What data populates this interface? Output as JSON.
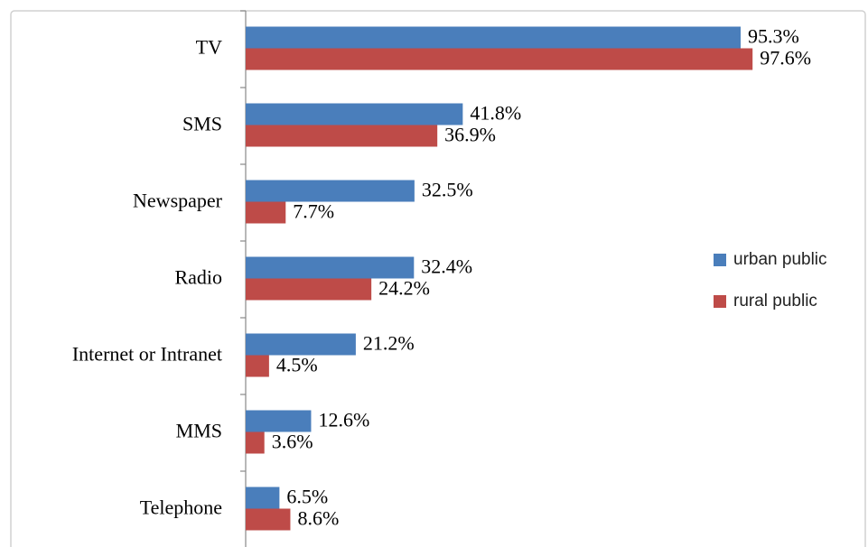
{
  "chart_data": {
    "type": "bar",
    "orientation": "horizontal",
    "categories": [
      "TV",
      "SMS",
      "Newspaper",
      "Radio",
      "Internet or Intranet",
      "MMS",
      "Telephone"
    ],
    "series": [
      {
        "name": "urban public",
        "color": "#4a7ebb",
        "values": [
          95.3,
          41.8,
          32.5,
          32.4,
          21.2,
          12.6,
          6.5
        ],
        "value_labels": [
          "95.3%",
          "41.8%",
          "32.5%",
          "32.4%",
          "21.2%",
          "12.6%",
          "6.5%"
        ]
      },
      {
        "name": "rural public",
        "color": "#be4b48",
        "values": [
          97.6,
          36.9,
          7.7,
          24.2,
          4.5,
          3.6,
          8.6
        ],
        "value_labels": [
          "97.6%",
          "36.9%",
          "7.7%",
          "24.2%",
          "4.5%",
          "3.6%",
          "8.6%"
        ]
      }
    ],
    "legend": "right"
  }
}
